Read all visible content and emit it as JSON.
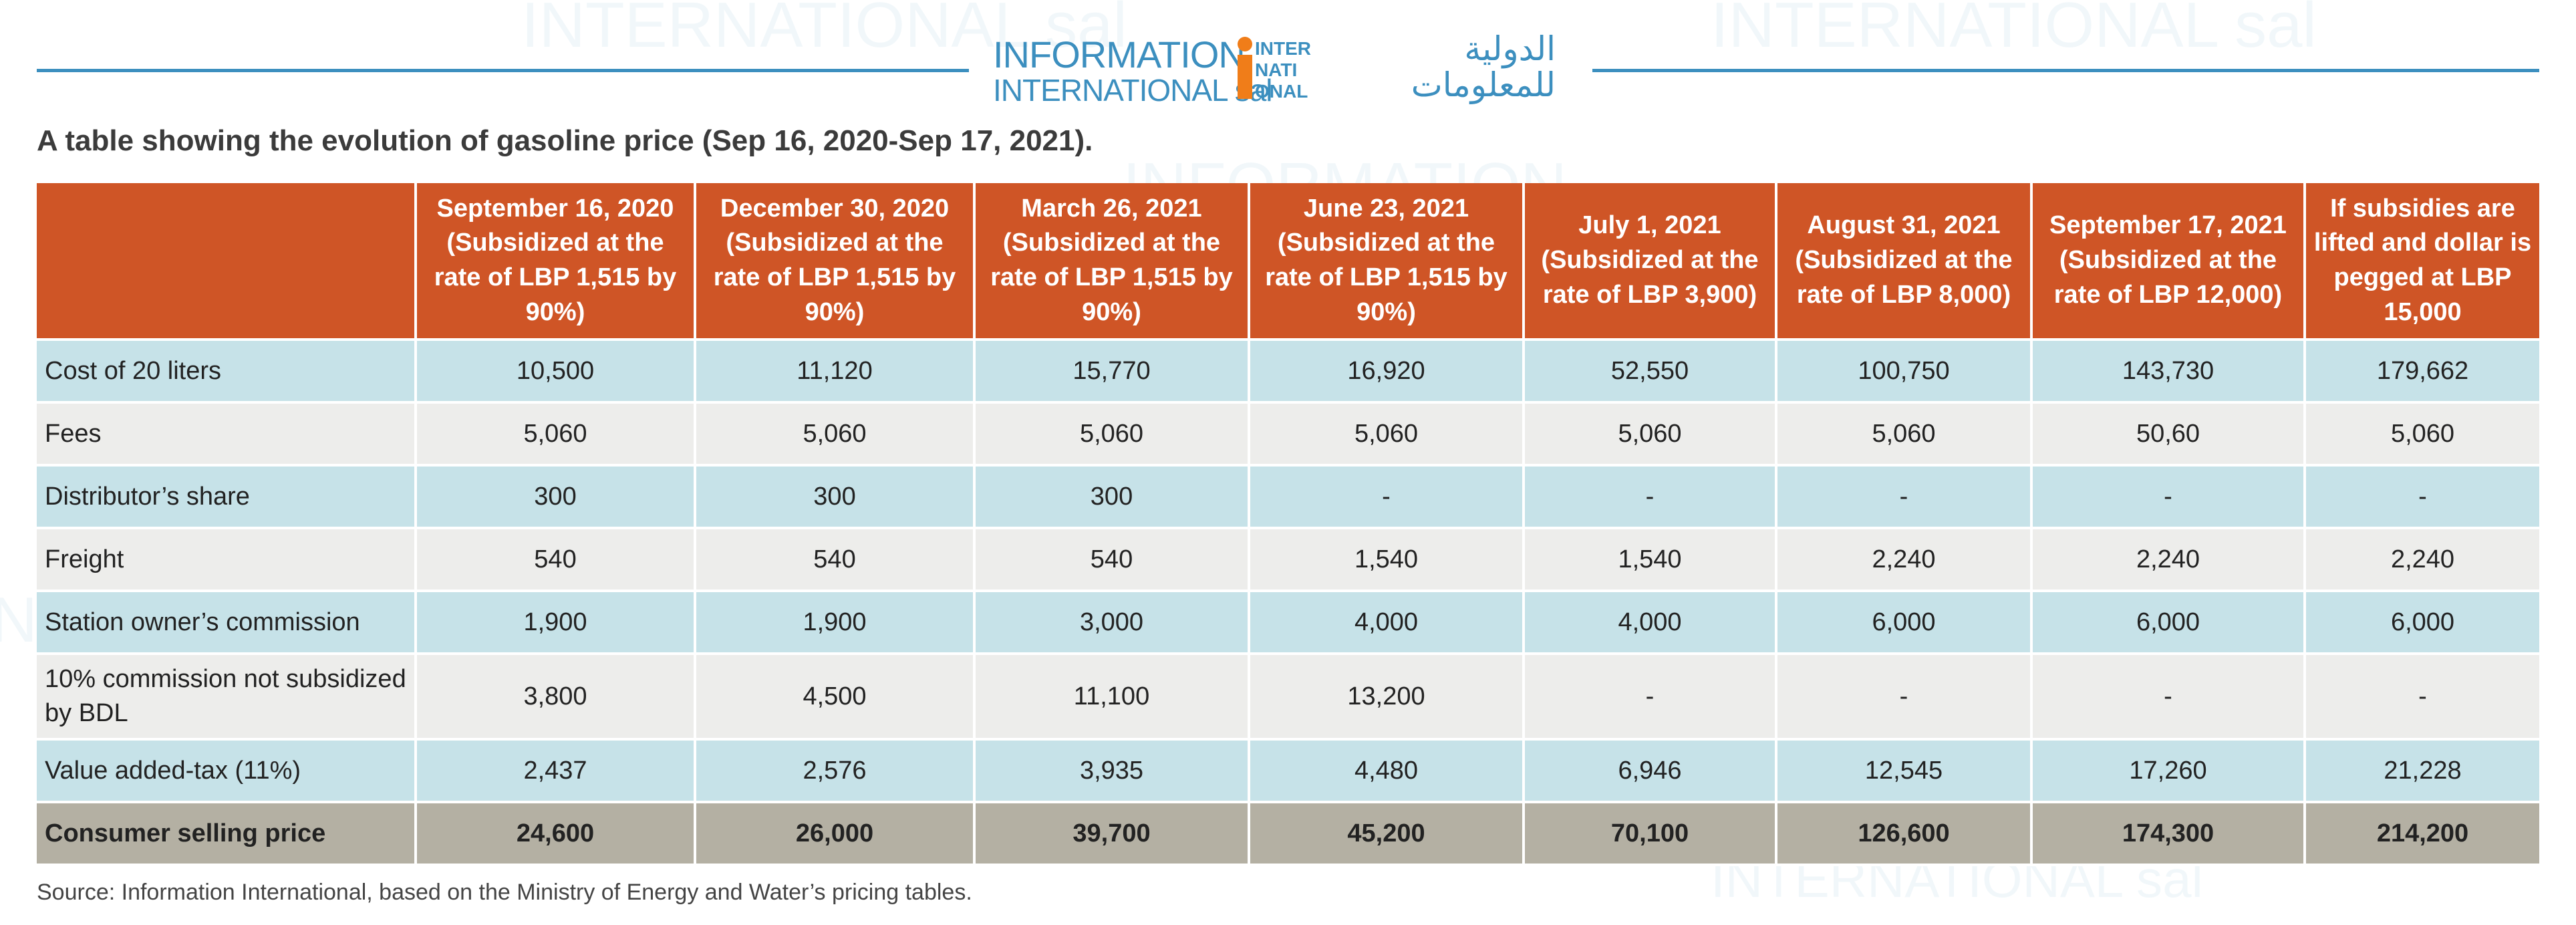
{
  "logo": {
    "en_line1": "INFORMATION",
    "en_line2": "INTERNATIONAL sal",
    "mark_lines": [
      "INTER",
      "NATI",
      "ONAL"
    ],
    "ar_line1": "الدولية",
    "ar_line2": "للمعلومات"
  },
  "caption": "A table showing the evolution of gasoline price (Sep 16, 2020-Sep 17, 2021).",
  "table": {
    "headers": [
      "",
      "September 16, 2020 (Subsidized at the rate of LBP 1,515 by 90%)",
      "December 30, 2020 (Subsidized at the rate of LBP 1,515 by 90%)",
      "March 26, 2021 (Subsidized at the rate of LBP 1,515 by 90%)",
      "June 23, 2021 (Subsidized at the rate of LBP 1,515 by 90%)",
      "July 1, 2021 (Subsidized at the rate of LBP 3,900)",
      "August 31, 2021 (Subsidized at the rate of LBP 8,000)",
      "September 17, 2021 (Subsidized at the rate of LBP 12,000)",
      "If subsidies are lifted and dollar is pegged at LBP 15,000"
    ],
    "rows": [
      {
        "label": "Cost of 20 liters",
        "values": [
          "10,500",
          "11,120",
          "15,770",
          "16,920",
          "52,550",
          "100,750",
          "143,730",
          "179,662"
        ]
      },
      {
        "label": "Fees",
        "values": [
          "5,060",
          "5,060",
          "5,060",
          "5,060",
          "5,060",
          "5,060",
          "50,60",
          "5,060"
        ]
      },
      {
        "label": "Distributor’s share",
        "values": [
          "300",
          "300",
          "300",
          "-",
          "-",
          "-",
          "-",
          "-"
        ]
      },
      {
        "label": "Freight",
        "values": [
          "540",
          "540",
          "540",
          "1,540",
          "1,540",
          "2,240",
          "2,240",
          "2,240"
        ]
      },
      {
        "label": "Station owner’s commission",
        "values": [
          "1,900",
          "1,900",
          "3,000",
          "4,000",
          "4,000",
          "6,000",
          "6,000",
          "6,000"
        ]
      },
      {
        "label": "10% commission not subsidized by BDL",
        "values": [
          "3,800",
          "4,500",
          "11,100",
          "13,200",
          "-",
          "-",
          "-",
          "-"
        ]
      },
      {
        "label": "Value added-tax (11%)",
        "values": [
          "2,437",
          "2,576",
          "3,935",
          "4,480",
          "6,946",
          "12,545",
          "17,260",
          "21,228"
        ]
      },
      {
        "label": "Consumer selling price",
        "values": [
          "24,600",
          "26,000",
          "39,700",
          "45,200",
          "70,100",
          "126,600",
          "174,300",
          "214,200"
        ]
      }
    ]
  },
  "source": "Source: Information International, based on the Ministry of Energy and Water’s pricing tables.",
  "colors": {
    "header_bg": "#cf5526",
    "row_blue": "#c6e2e8",
    "row_gray": "#ededeb",
    "row_total": "#b4b0a3",
    "brand_blue": "#3c8fbf"
  }
}
